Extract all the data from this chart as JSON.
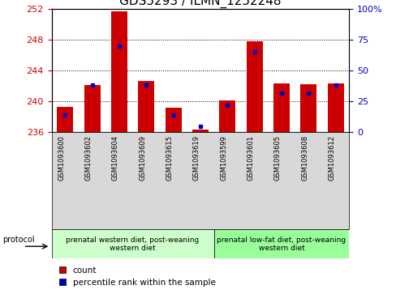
{
  "title": "GDS5293 / ILMN_1252248",
  "samples": [
    "GSM1093600",
    "GSM1093602",
    "GSM1093604",
    "GSM1093609",
    "GSM1093615",
    "GSM1093619",
    "GSM1093599",
    "GSM1093601",
    "GSM1093605",
    "GSM1093608",
    "GSM1093612"
  ],
  "counts": [
    239.3,
    242.1,
    251.7,
    242.7,
    239.2,
    236.4,
    240.1,
    247.8,
    242.3,
    242.2,
    242.3
  ],
  "percentiles": [
    14,
    38,
    70,
    38,
    14,
    5,
    22,
    65,
    32,
    32,
    38
  ],
  "y_min": 236,
  "y_max": 252,
  "y_ticks": [
    236,
    240,
    244,
    248,
    252
  ],
  "y2_ticks": [
    0,
    25,
    50,
    75,
    100
  ],
  "bar_color": "#cc0000",
  "percentile_color": "#0000cc",
  "bar_width": 0.6,
  "group1_label": "prenatal western diet, post-weaning\nwestern diet",
  "group2_label": "prenatal low-fat diet, post-weaning\nwestern diet",
  "group1_count": 6,
  "group2_count": 5,
  "protocol_label": "protocol",
  "legend_count_label": "count",
  "legend_percentile_label": "percentile rank within the sample",
  "group1_color": "#ccffcc",
  "group2_color": "#99ff99",
  "sample_bg_color": "#d8d8d8",
  "title_fontsize": 11,
  "tick_fontsize": 8,
  "axis_label_color_left": "#cc0000",
  "axis_label_color_right": "#0000cc"
}
